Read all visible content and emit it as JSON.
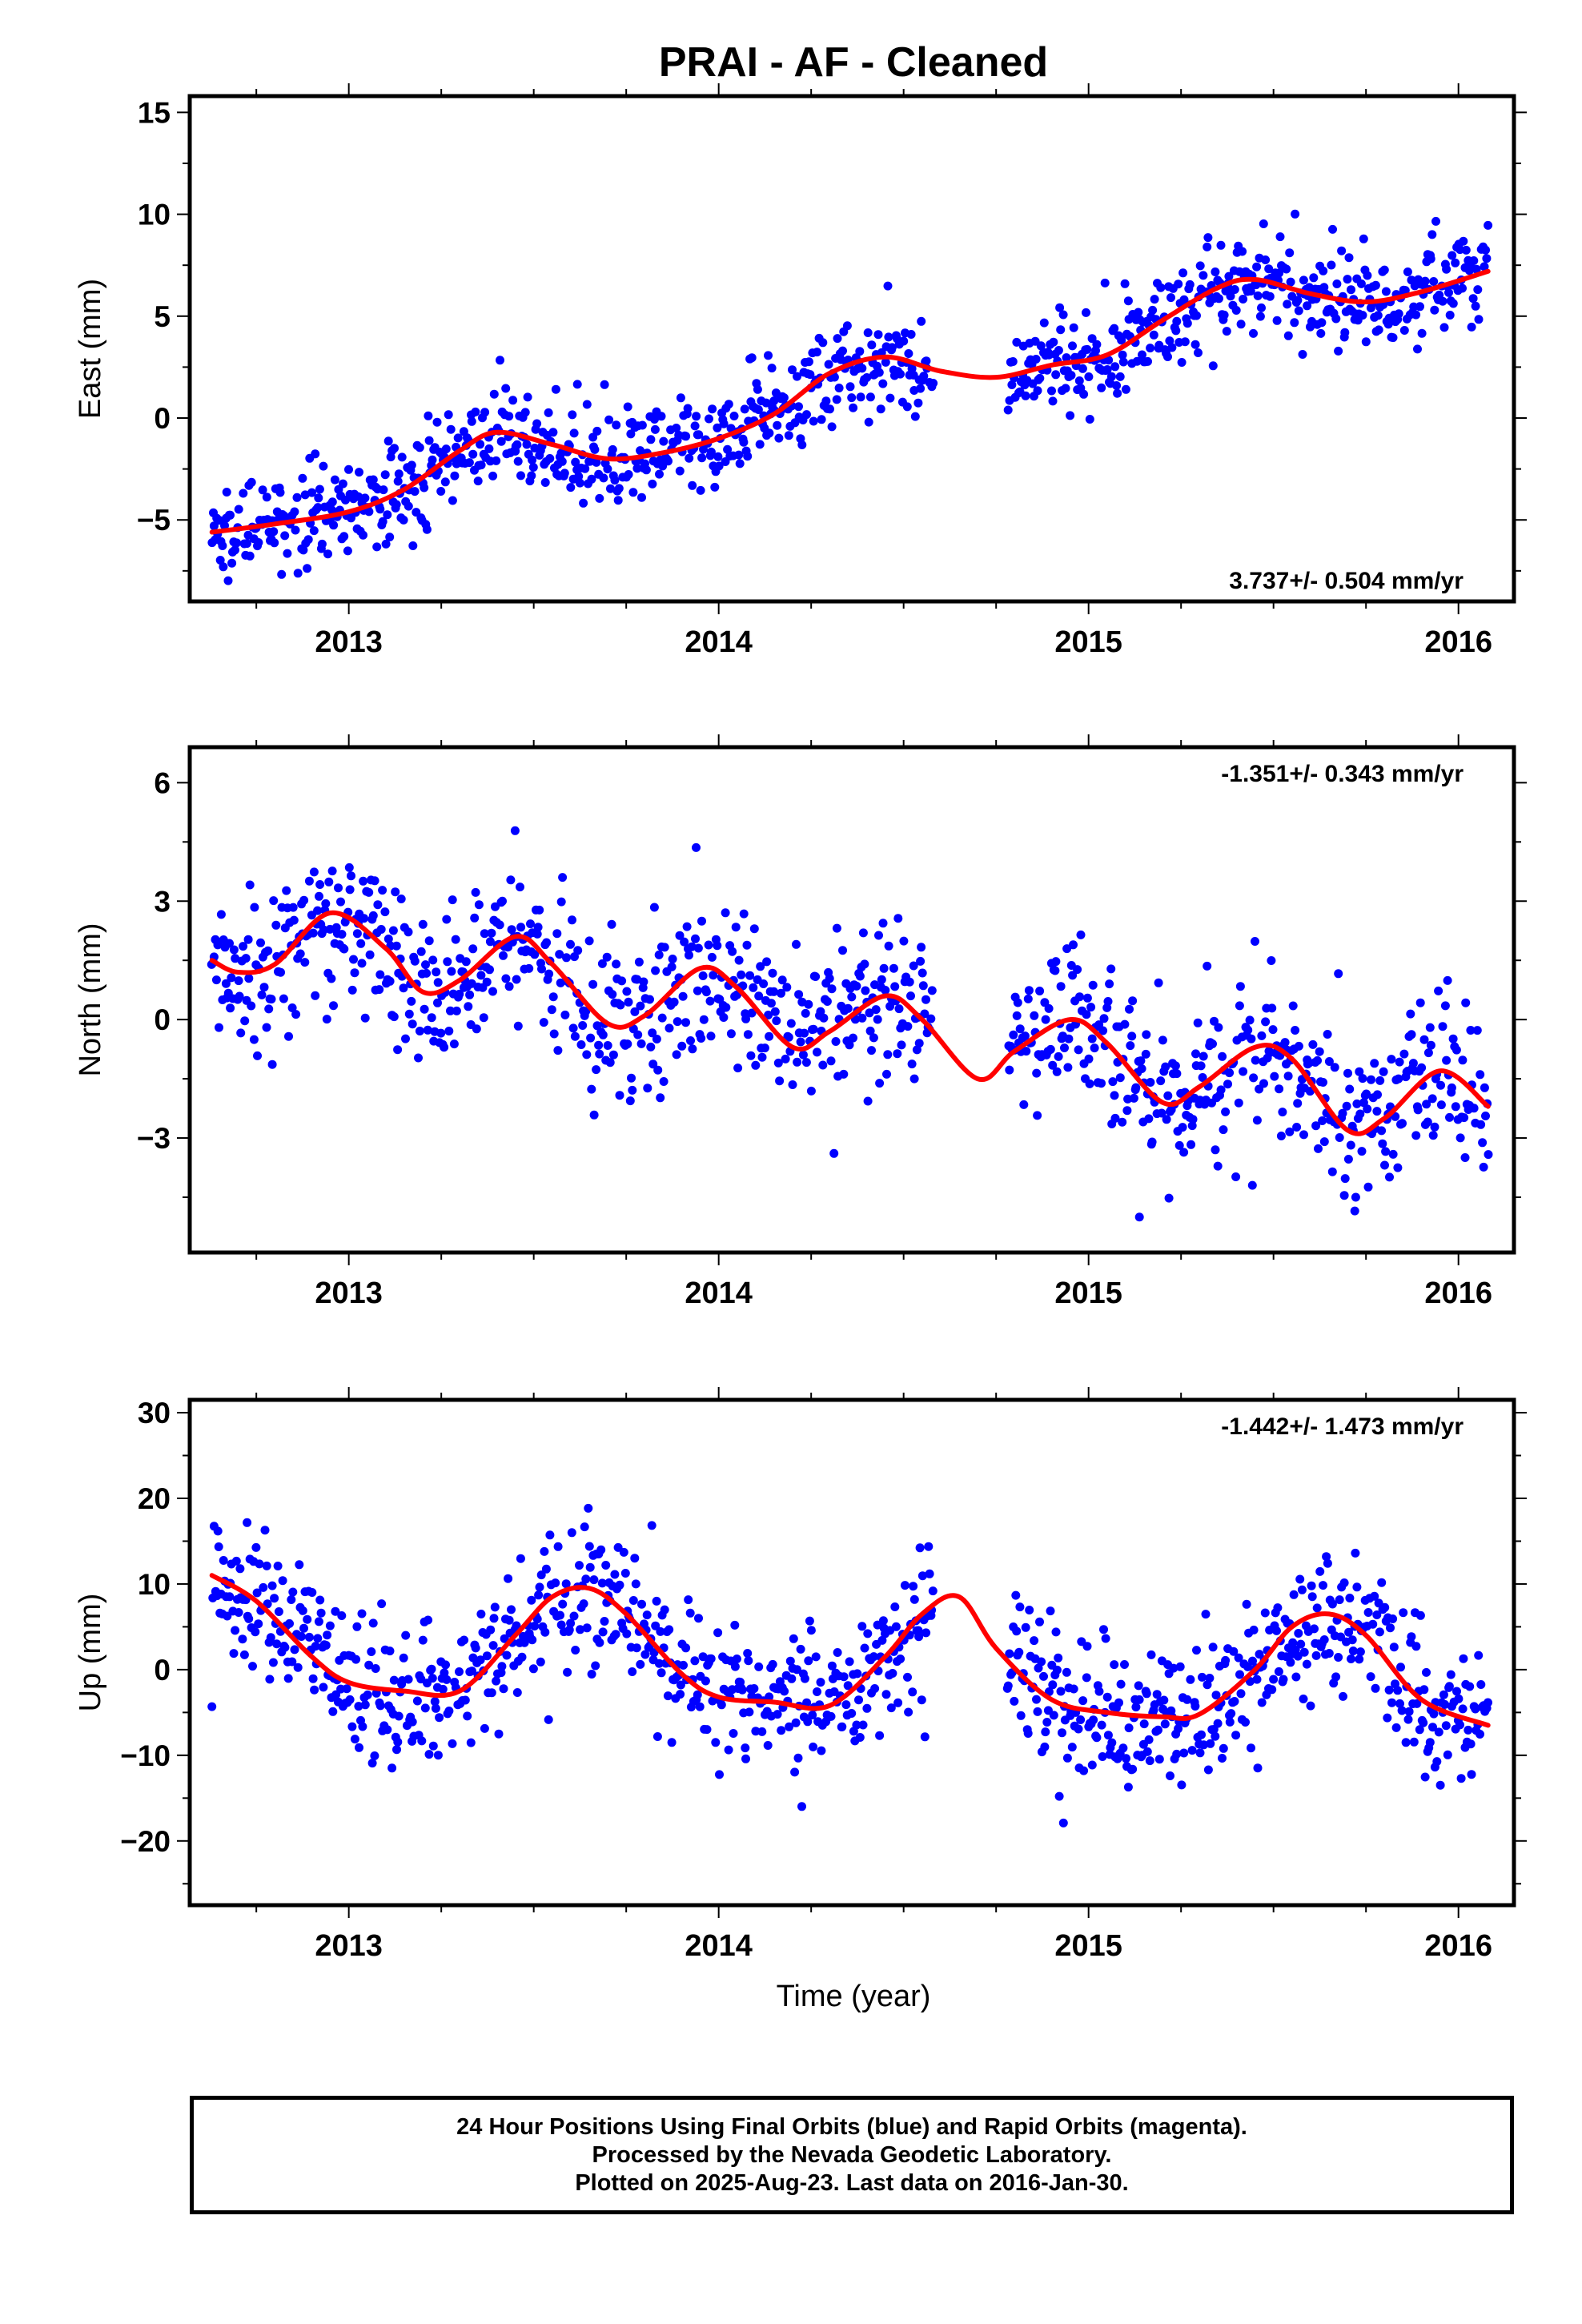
{
  "title": "PRAI  - AF - Cleaned",
  "xlabel": "Time (year)",
  "colors": {
    "points": "#0000ff",
    "fit": "#ff0000",
    "axes": "#000000"
  },
  "footer": {
    "line1": "24 Hour Positions Using Final Orbits (blue) and Rapid Orbits (magenta).",
    "line2": "Processed by the Nevada Geodetic Laboratory.",
    "line3": "Plotted on 2025-Aug-23. Last data on 2016-Jan-30."
  },
  "chart_data": [
    {
      "type": "scatter",
      "id": "east",
      "ylabel": "East (mm)",
      "rate_text": "3.737+/- 0.504 mm/yr",
      "rate_position": "bottom-right",
      "xlim": [
        2012.57,
        2016.15
      ],
      "ylim": [
        -9,
        15.8
      ],
      "xticks": [
        2013,
        2014,
        2015,
        2016
      ],
      "xtick_labels": [
        "2013",
        "2014",
        "2015",
        "2016"
      ],
      "yticks": [
        -5,
        0,
        5,
        10,
        15
      ],
      "ytick_labels": [
        "−5",
        "0",
        "5",
        "10",
        "15"
      ],
      "grid": false,
      "series": [
        {
          "kind": "points",
          "gaps": [
            [
              2014.58,
              2014.78
            ]
          ],
          "model": {
            "t0": 2012.63,
            "offset": -5.5,
            "rate": 3.737,
            "ann_sin": 0.8,
            "ann_cos": -0.6,
            "semi_sin": 0.4,
            "semi_cos": 0.2
          },
          "noise": 1.2,
          "n": 1100
        },
        {
          "kind": "fit",
          "x": [
            2012.63,
            2012.8,
            2013.0,
            2013.15,
            2013.3,
            2013.4,
            2013.55,
            2013.7,
            2013.85,
            2014.0,
            2014.15,
            2014.3,
            2014.45,
            2014.6,
            2014.75,
            2014.9,
            2015.05,
            2015.2,
            2015.35,
            2015.45,
            2015.6,
            2015.75,
            2015.9,
            2016.08
          ],
          "y": [
            -5.6,
            -5.2,
            -4.6,
            -3.5,
            -1.6,
            -0.7,
            -1.3,
            -2.0,
            -1.7,
            -1.0,
            0.2,
            2.2,
            3.0,
            2.3,
            2.0,
            2.6,
            3.1,
            4.8,
            6.4,
            6.8,
            6.1,
            5.7,
            6.2,
            7.2
          ]
        }
      ]
    },
    {
      "type": "scatter",
      "id": "north",
      "ylabel": "North (mm)",
      "rate_text": "-1.351+/- 0.343 mm/yr",
      "rate_position": "top-right",
      "xlim": [
        2012.57,
        2016.15
      ],
      "ylim": [
        -5.9,
        6.9
      ],
      "xticks": [
        2013,
        2014,
        2015,
        2016
      ],
      "xtick_labels": [
        "2013",
        "2014",
        "2015",
        "2016"
      ],
      "yticks": [
        -3,
        0,
        3,
        6
      ],
      "ytick_labels": [
        "−3",
        "0",
        "3",
        "6"
      ],
      "grid": false,
      "series": [
        {
          "kind": "points",
          "gaps": [
            [
              2014.58,
              2014.78
            ]
          ],
          "model": {
            "t0": 2012.63,
            "offset": 1.8,
            "rate": -1.351,
            "ann_sin": 0.9,
            "ann_cos": -0.2,
            "semi_sin": 0.9,
            "semi_cos": -0.7
          },
          "noise": 1.0,
          "n": 1100
        },
        {
          "kind": "fit",
          "x": [
            2012.63,
            2012.7,
            2012.8,
            2012.95,
            2013.1,
            2013.2,
            2013.3,
            2013.45,
            2013.55,
            2013.7,
            2013.8,
            2013.95,
            2014.05,
            2014.2,
            2014.3,
            2014.45,
            2014.55,
            2014.7,
            2014.8,
            2014.95,
            2015.05,
            2015.2,
            2015.3,
            2015.45,
            2015.55,
            2015.7,
            2015.8,
            2015.95,
            2016.08
          ],
          "y": [
            1.5,
            1.2,
            1.4,
            2.7,
            1.8,
            0.7,
            1.0,
            2.1,
            1.4,
            -0.1,
            0.1,
            1.3,
            0.8,
            -0.7,
            -0.3,
            0.6,
            0.0,
            -1.5,
            -0.8,
            0.0,
            -0.6,
            -2.1,
            -1.7,
            -0.7,
            -1.0,
            -2.8,
            -2.5,
            -1.3,
            -2.2
          ]
        }
      ]
    },
    {
      "type": "scatter",
      "id": "up",
      "ylabel": "Up (mm)",
      "rate_text": "-1.442+/- 1.473 mm/yr",
      "rate_position": "top-right",
      "xlim": [
        2012.57,
        2016.15
      ],
      "ylim": [
        -27.5,
        31.5
      ],
      "xticks": [
        2013,
        2014,
        2015,
        2016
      ],
      "xtick_labels": [
        "2013",
        "2014",
        "2015",
        "2016"
      ],
      "yticks": [
        -20,
        -10,
        0,
        10,
        20,
        30
      ],
      "ytick_labels": [
        "−20",
        "−10",
        "0",
        "10",
        "20",
        "30"
      ],
      "grid": false,
      "series": [
        {
          "kind": "points",
          "gaps": [
            [
              2014.58,
              2014.78
            ]
          ],
          "model": {
            "t0": 2012.63,
            "offset": 2.0,
            "rate": -1.442,
            "ann_sin": 1.5,
            "ann_cos": 6.5,
            "semi_sin": 1.0,
            "semi_cos": 1.5
          },
          "noise": 4.2,
          "n": 1100
        },
        {
          "kind": "fit",
          "x": [
            2012.63,
            2012.75,
            2012.9,
            2013.0,
            2013.15,
            2013.3,
            2013.45,
            2013.55,
            2013.65,
            2013.75,
            2013.9,
            2014.0,
            2014.15,
            2014.3,
            2014.45,
            2014.55,
            2014.65,
            2014.75,
            2014.9,
            2015.05,
            2015.2,
            2015.3,
            2015.45,
            2015.55,
            2015.65,
            2015.75,
            2015.9,
            2016.08
          ],
          "y": [
            11.0,
            8.0,
            1.5,
            -1.5,
            -2.5,
            -2.5,
            4.0,
            8.5,
            9.5,
            6.5,
            -0.5,
            -3.2,
            -3.8,
            -4.2,
            1.5,
            6.5,
            8.5,
            2.5,
            -3.5,
            -5.0,
            -5.5,
            -5.2,
            0.0,
            5.0,
            6.5,
            4.0,
            -3.5,
            -6.5
          ]
        }
      ]
    }
  ]
}
